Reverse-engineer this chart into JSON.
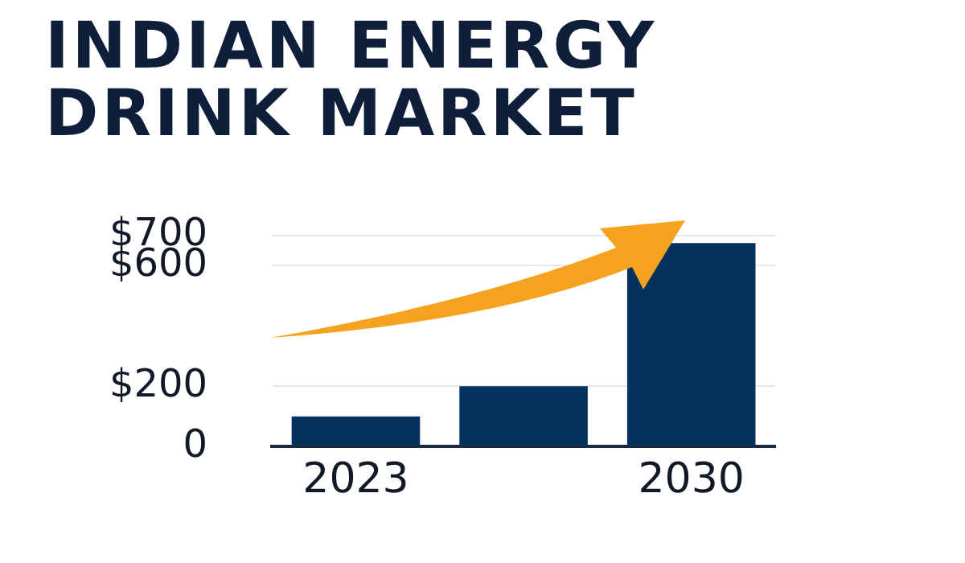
{
  "chart_data": {
    "type": "bar",
    "title": "INDIAN ENERGY DRINK MARKET",
    "categories": [
      "2023",
      null,
      "2030"
    ],
    "values": [
      100,
      200,
      675
    ],
    "color": "#04325e",
    "ylim": [
      0,
      700
    ],
    "yticks": [
      {
        "value": 0,
        "label": "0"
      },
      {
        "value": 200,
        "label": "$200"
      },
      {
        "value": 600,
        "label": "$600"
      },
      {
        "value": 700,
        "label": "$700"
      }
    ],
    "grid": "y",
    "legend": false
  }
}
